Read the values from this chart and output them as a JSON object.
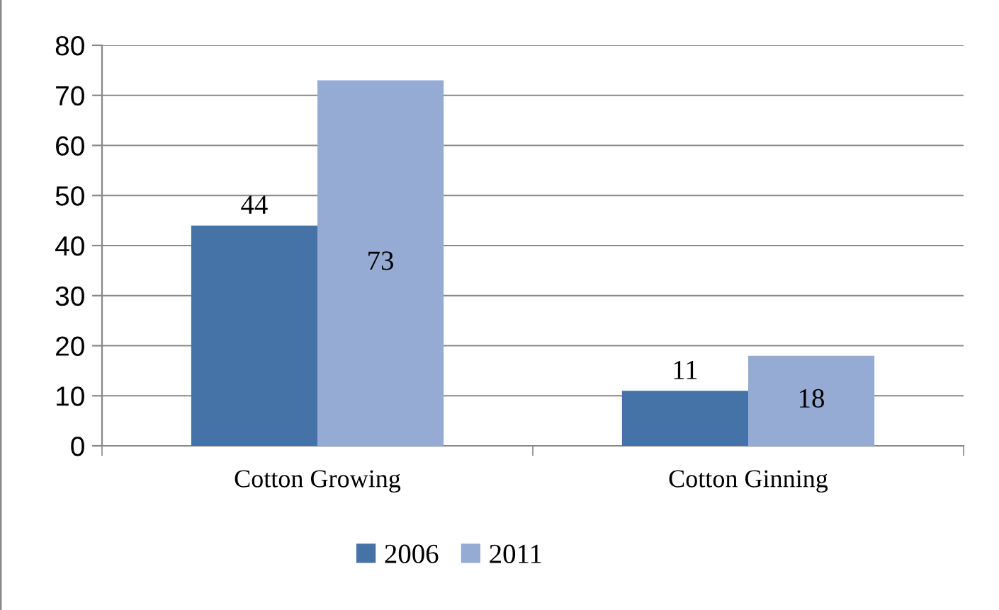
{
  "chart_data": {
    "type": "bar",
    "categories": [
      "Cotton Growing",
      "Cotton Ginning"
    ],
    "series": [
      {
        "name": "2006",
        "color": "#4572a7",
        "values": [
          44,
          11
        ]
      },
      {
        "name": "2011",
        "color": "#95abd4",
        "values": [
          73,
          18
        ]
      }
    ],
    "ylim": [
      0,
      80
    ],
    "yticks": [
      0,
      10,
      20,
      30,
      40,
      50,
      60,
      70,
      80
    ],
    "grid": "y",
    "legend": "bottom",
    "data_labels": true
  }
}
